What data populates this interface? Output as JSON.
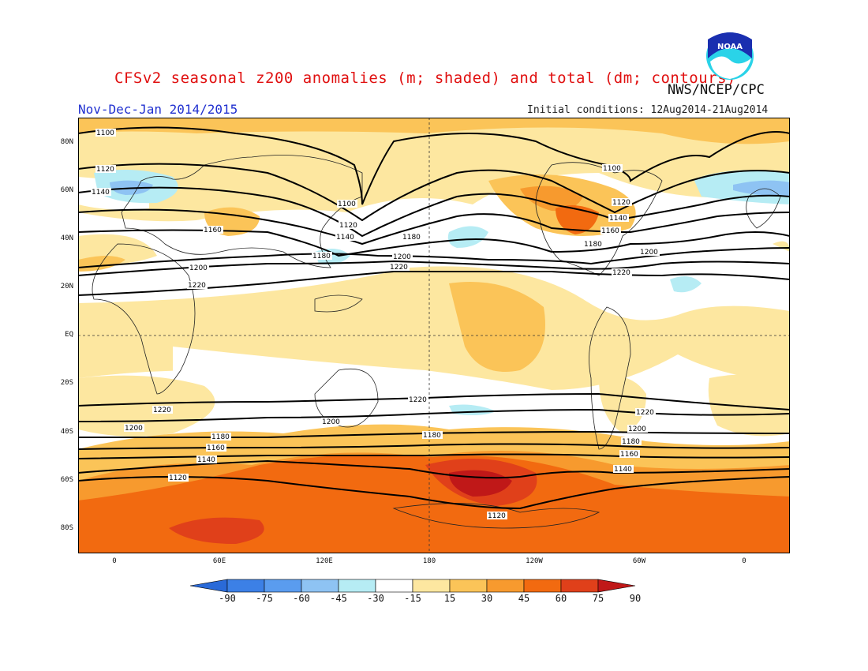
{
  "header": {
    "title": "CFSv2 seasonal z200 anomalies (m; shaded) and total (dm; contours)",
    "org": "NWS/NCEP/CPC",
    "period": "Nov-Dec-Jan 2014/2015",
    "initial_conditions": "Initial conditions: 12Aug2014-21Aug2014",
    "logo_text": "NOAA"
  },
  "axes": {
    "lat_labels": [
      "80N",
      "60N",
      "40N",
      "20N",
      "EQ",
      "20S",
      "40S",
      "60S",
      "80S"
    ],
    "lon_labels": [
      "0",
      "60E",
      "120E",
      "180",
      "120W",
      "60W",
      "0"
    ]
  },
  "contour_labels": {
    "c1100a": "1100",
    "c1120a": "1120",
    "c1140a": "1140",
    "c1100b": "1100",
    "c1160a": "1160",
    "c1120b": "1120",
    "c1140b": "1140",
    "c1180a": "1180",
    "c1180b": "1180",
    "c1200a": "1200",
    "c1220a": "1220",
    "c1200b": "1200",
    "c1220b": "1220",
    "c1100c": "1100",
    "c1120c": "1120",
    "c1140c": "1140",
    "c1160b": "1160",
    "c1180c": "1180",
    "c1200c": "1200",
    "c1220c": "1220",
    "c1220d": "1220",
    "c1220e": "1220",
    "c1200d": "1200",
    "c1200e": "1200",
    "c1180d": "1180",
    "c1180e": "1180",
    "c1160c": "1160",
    "c1140d": "1140",
    "c1120d": "1120",
    "c1220f": "1220",
    "c1200f": "1200",
    "c1180f": "1180",
    "c1160d": "1160",
    "c1140e": "1140",
    "c1120e": "1120"
  },
  "colorbar": {
    "ticks": [
      "-90",
      "-75",
      "-60",
      "-45",
      "-30",
      "-15",
      "15",
      "30",
      "45",
      "60",
      "75",
      "90"
    ],
    "colors": [
      "#2a6ad8",
      "#3c80e6",
      "#5a9cef",
      "#8ec3f3",
      "#b6ecf4",
      "#ffffff",
      "#fde7a0",
      "#fbc458",
      "#f79a2e",
      "#f26a10",
      "#e0401a",
      "#c01818"
    ]
  }
}
